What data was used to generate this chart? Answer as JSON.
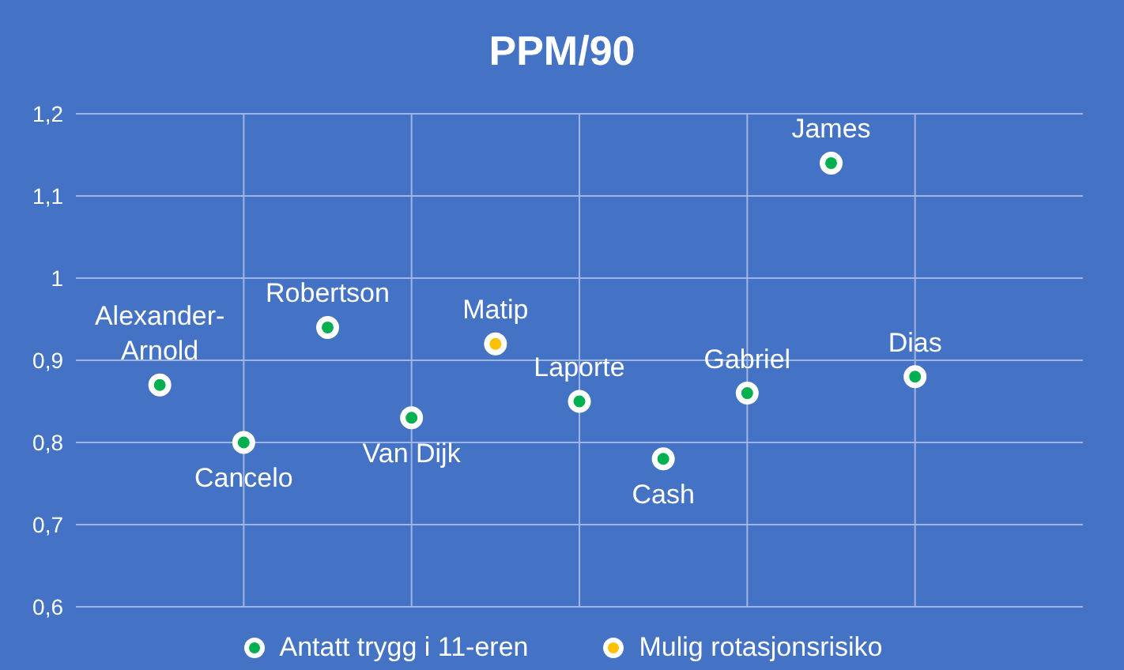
{
  "chart_data": {
    "type": "scatter",
    "title": "PPM/90",
    "categories": [
      null,
      null,
      null,
      null,
      null,
      null,
      null,
      null,
      null,
      null,
      null,
      null,
      null
    ],
    "ylim": [
      0.6,
      1.2
    ],
    "yticks": [
      {
        "value": 0.6,
        "label": "0,6"
      },
      {
        "value": 0.7,
        "label": "0,7"
      },
      {
        "value": 0.8,
        "label": "0,8"
      },
      {
        "value": 0.9,
        "label": "0,9"
      },
      {
        "value": 1,
        "label": "1"
      },
      {
        "value": 1.1,
        "label": "1,1"
      },
      {
        "value": 1.2,
        "label": "1,2"
      }
    ],
    "grid": true,
    "legend": "bottom",
    "marker": "circle",
    "series": [
      {
        "name": "Antatt trygg i 11-eren",
        "color": "#00b050",
        "values": [
          null,
          0.87,
          0.8,
          0.94,
          0.83,
          null,
          0.85,
          0.78,
          0.86,
          1.14,
          0.88,
          null,
          null
        ],
        "value_labels": [
          null,
          "Alexander-Arnold",
          "Cancelo",
          "Robertson",
          "Van Dijk",
          null,
          "Laporte",
          "Cash",
          "Gabriel",
          "James",
          "Dias",
          null,
          null
        ]
      },
      {
        "name": "Mulig rotasjonsrisiko",
        "color": "#ffc000",
        "values": [
          null,
          null,
          null,
          null,
          null,
          0.92,
          null,
          null,
          null,
          null,
          null,
          null,
          null
        ],
        "value_labels": [
          null,
          null,
          null,
          null,
          null,
          "Matip",
          null,
          null,
          null,
          null,
          null,
          null,
          null
        ]
      }
    ]
  }
}
